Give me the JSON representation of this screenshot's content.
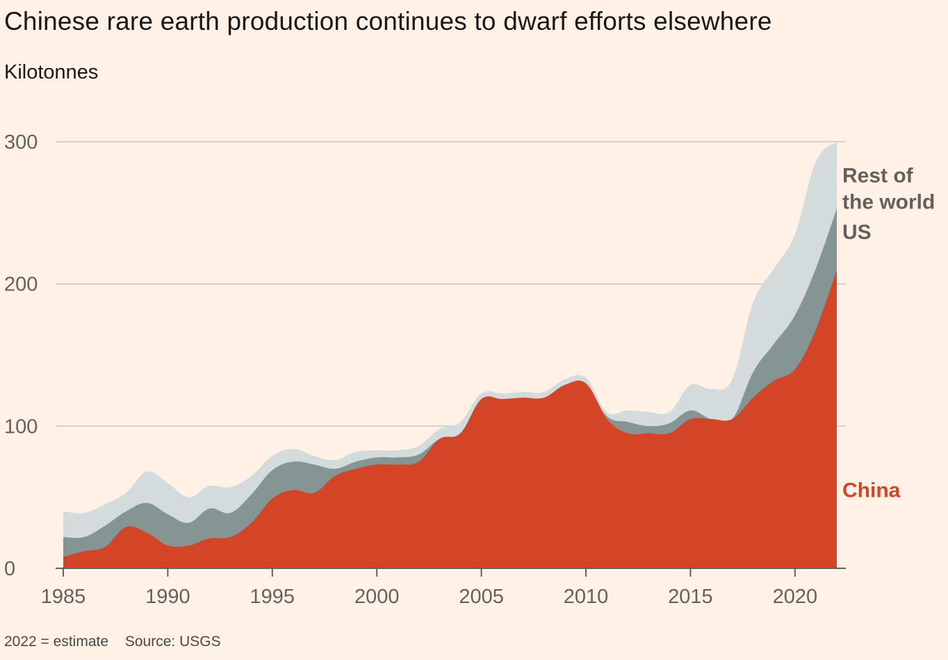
{
  "header": {
    "title": "Chinese rare earth production continues to dwarf efforts elsewhere",
    "subtitle": "Kilotonnes"
  },
  "footer": {
    "note": "2022 = estimate",
    "source": "Source: USGS"
  },
  "colors": {
    "background": "#FFF1E5",
    "china": "#D44527",
    "us": "#849593",
    "rest": "#D4DBDC",
    "grid": "#CEC6BE",
    "axis": "#66605C",
    "label_gray": "#66605C"
  },
  "chart_data": {
    "type": "area",
    "stacked": true,
    "x": [
      1985,
      1986,
      1987,
      1988,
      1989,
      1990,
      1991,
      1992,
      1993,
      1994,
      1995,
      1996,
      1997,
      1998,
      1999,
      2000,
      2001,
      2002,
      2003,
      2004,
      2005,
      2006,
      2007,
      2008,
      2009,
      2010,
      2011,
      2012,
      2013,
      2014,
      2015,
      2016,
      2017,
      2018,
      2019,
      2020,
      2021,
      2022
    ],
    "ylim": [
      0,
      300
    ],
    "xlim": [
      1985,
      2022
    ],
    "yticks": [
      0,
      100,
      200,
      300
    ],
    "xticks": [
      1985,
      1990,
      1995,
      2000,
      2005,
      2010,
      2015,
      2020
    ],
    "grid": true,
    "series": [
      {
        "name": "China",
        "key": "china",
        "values": [
          8,
          12,
          15,
          29,
          25,
          16,
          16,
          21,
          22,
          32,
          49,
          55,
          53,
          65,
          70,
          73,
          73,
          75,
          91,
          95,
          119,
          119,
          120,
          120,
          129,
          130,
          105,
          95,
          95,
          95,
          105,
          105,
          105,
          120,
          132,
          140,
          168,
          210
        ]
      },
      {
        "name": "US",
        "key": "us",
        "values": [
          14,
          10,
          15,
          11,
          21,
          22,
          16,
          21,
          17,
          20,
          20,
          20,
          20,
          5,
          5,
          5,
          5,
          5,
          0,
          0,
          0,
          0,
          0,
          0,
          0,
          0,
          2,
          8,
          5,
          7,
          6,
          0,
          0,
          18,
          26,
          38,
          43,
          43
        ]
      },
      {
        "name": "Rest of the world",
        "key": "rest",
        "label_lines": [
          "Rest of",
          "the world"
        ],
        "values": [
          18,
          17,
          15,
          13,
          22,
          22,
          18,
          16,
          18,
          13,
          10,
          9,
          6,
          6,
          7,
          5,
          5,
          6,
          7,
          8,
          4,
          4,
          4,
          4,
          4,
          4,
          3,
          8,
          10,
          8,
          18,
          21,
          28,
          49,
          53,
          57,
          75,
          47
        ]
      }
    ]
  }
}
